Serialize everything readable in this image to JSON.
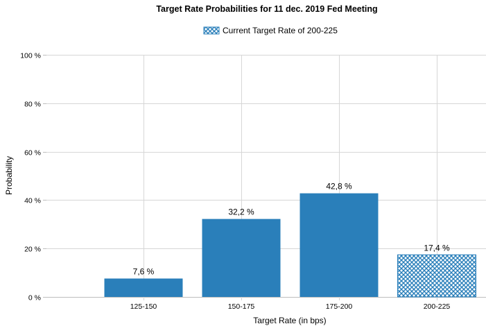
{
  "chart_data": {
    "type": "bar",
    "title": "Target Rate Probabilities for 11 dec. 2019 Fed Meeting",
    "legend": {
      "label": "Current Target Rate of 200-225",
      "placement": "top-center"
    },
    "xlabel": "Target Rate (in bps)",
    "ylabel": "Probability",
    "categories": [
      "125-150",
      "150-175",
      "175-200",
      "200-225"
    ],
    "values": [
      7.6,
      32.2,
      42.8,
      17.4
    ],
    "data_labels": [
      "7,6 %",
      "32,2 %",
      "42,8 %",
      "17,4 %"
    ],
    "current_category": "200-225",
    "ylim": [
      0,
      100
    ],
    "yticks": [
      0,
      20,
      40,
      60,
      80,
      100
    ],
    "ytick_labels": [
      "0 %",
      "20 %",
      "40 %",
      "60 %",
      "80 %",
      "100 %"
    ],
    "grid": true,
    "colors": {
      "bar": "#2a7fba",
      "current_bar_hatch": "#2a7fba",
      "current_bar_background": "#ffffff"
    }
  }
}
